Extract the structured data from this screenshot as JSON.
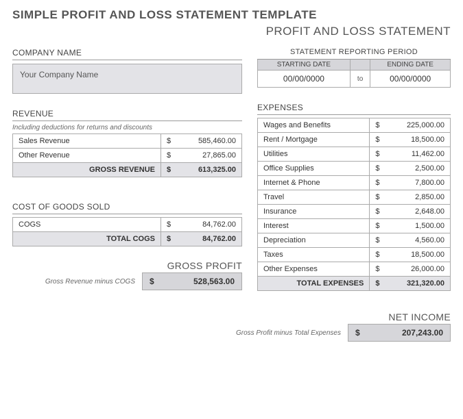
{
  "titles": {
    "main": "SIMPLE PROFIT AND LOSS STATEMENT TEMPLATE",
    "sub": "PROFIT AND LOSS STATEMENT"
  },
  "company": {
    "section_label": "COMPANY NAME",
    "value": "Your Company Name"
  },
  "period": {
    "section_label": "STATEMENT REPORTING PERIOD",
    "start_label": "STARTING DATE",
    "end_label": "ENDING DATE",
    "start_value": "00/00/0000",
    "to_label": "to",
    "end_value": "00/00/0000"
  },
  "revenue": {
    "section_label": "REVENUE",
    "note": "Including deductions for returns and discounts",
    "rows": [
      {
        "label": "Sales Revenue",
        "currency": "$",
        "value": "585,460.00"
      },
      {
        "label": "Other Revenue",
        "currency": "$",
        "value": "27,865.00"
      }
    ],
    "total_label": "GROSS REVENUE",
    "total_currency": "$",
    "total_value": "613,325.00"
  },
  "cogs": {
    "section_label": "COST OF GOODS SOLD",
    "rows": [
      {
        "label": "COGS",
        "currency": "$",
        "value": "84,762.00"
      }
    ],
    "total_label": "TOTAL COGS",
    "total_currency": "$",
    "total_value": "84,762.00"
  },
  "gross_profit": {
    "label": "GROSS PROFIT",
    "note": "Gross Revenue minus COGS",
    "currency": "$",
    "value": "528,563.00"
  },
  "expenses": {
    "section_label": "EXPENSES",
    "rows": [
      {
        "label": "Wages and Benefits",
        "currency": "$",
        "value": "225,000.00"
      },
      {
        "label": "Rent / Mortgage",
        "currency": "$",
        "value": "18,500.00"
      },
      {
        "label": "Utilities",
        "currency": "$",
        "value": "11,462.00"
      },
      {
        "label": "Office Supplies",
        "currency": "$",
        "value": "2,500.00"
      },
      {
        "label": "Internet & Phone",
        "currency": "$",
        "value": "7,800.00"
      },
      {
        "label": "Travel",
        "currency": "$",
        "value": "2,850.00"
      },
      {
        "label": "Insurance",
        "currency": "$",
        "value": "2,648.00"
      },
      {
        "label": "Interest",
        "currency": "$",
        "value": "1,500.00"
      },
      {
        "label": "Depreciation",
        "currency": "$",
        "value": "4,560.00"
      },
      {
        "label": "Taxes",
        "currency": "$",
        "value": "18,500.00"
      },
      {
        "label": "Other Expenses",
        "currency": "$",
        "value": "26,000.00"
      }
    ],
    "total_label": "TOTAL EXPENSES",
    "total_currency": "$",
    "total_value": "321,320.00"
  },
  "net_income": {
    "label": "NET INCOME",
    "note": "Gross Profit minus Total Expenses",
    "currency": "$",
    "value": "207,243.00"
  },
  "style": {
    "header_bg": "#d6d6da",
    "total_bg": "#e3e3e7",
    "border_color": "#aaaaaa",
    "text_color": "#333333",
    "muted_text": "#666666"
  }
}
